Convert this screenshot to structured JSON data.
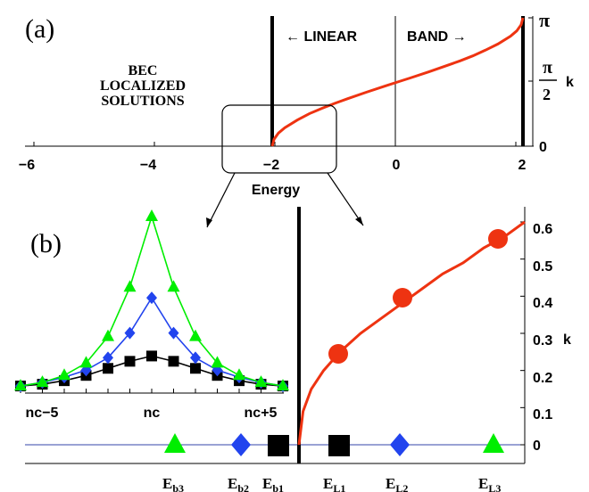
{
  "panel_a": {
    "label": "(a)",
    "x_ticks": [
      "−6",
      "−4",
      "−2",
      "0",
      "2"
    ],
    "x_label": "Energy",
    "right_ticks": {
      "pi": "π",
      "pi_half_num": "π",
      "pi_half_den": "2",
      "zero": "0"
    },
    "right_label": "k",
    "linear_label": "← LINEAR",
    "band_label": "BAND →",
    "bec_lines": [
      "BEC",
      "LOCALIZED",
      "SOLUTIONS"
    ]
  },
  "panel_b": {
    "label": "(b)",
    "y_ticks": [
      "0.6",
      "0.5",
      "0.4",
      "0.3",
      "0.2",
      "0.1",
      "0"
    ],
    "y_label": "k",
    "inset_ticks": [
      "nc−5",
      "nc",
      "nc+5"
    ],
    "bottom": {
      "b3": {
        "main": "E",
        "sub": "b3"
      },
      "b2": {
        "main": "E",
        "sub": "b2"
      },
      "b1": {
        "main": "E",
        "sub": "b1"
      },
      "L1": {
        "main": "E",
        "sub": "L1"
      },
      "L2": {
        "main": "E",
        "sub": "L2"
      },
      "L3": {
        "main": "E",
        "sub": "L3"
      }
    }
  },
  "chart_data": [
    {
      "type": "line",
      "panel": "(a)",
      "xlim": [
        -6.5,
        2.1
      ],
      "ylim": [
        0,
        3.1416
      ],
      "x_ticks": [
        -6,
        -4,
        -2,
        0,
        2
      ],
      "y_ticks": [
        "0",
        "π/2",
        "π"
      ],
      "series": [
        {
          "color": "#ee3311",
          "x": [
            -2,
            -1.97,
            -1.9,
            -1.8,
            -1.6,
            -1.4,
            -1.2,
            -1.0,
            -0.8,
            -0.5,
            -0.2,
            0,
            0.2,
            0.5,
            0.8,
            1.0,
            1.2,
            1.4,
            1.6,
            1.8,
            1.9,
            1.97,
            2
          ],
          "y": [
            0,
            0.17,
            0.32,
            0.45,
            0.64,
            0.8,
            0.93,
            1.05,
            1.16,
            1.32,
            1.47,
            1.5708,
            1.67,
            1.82,
            1.98,
            2.09,
            2.21,
            2.35,
            2.5,
            2.69,
            2.82,
            2.97,
            3.1416
          ]
        }
      ],
      "vertical_lines": [
        -2,
        0,
        2
      ]
    },
    {
      "type": "line",
      "panel": "(b)",
      "xlim": [
        -2.65,
        -1.43
      ],
      "ylim": [
        0,
        0.63
      ],
      "y_ticks": [
        0,
        0.1,
        0.2,
        0.3,
        0.4,
        0.5,
        0.6
      ],
      "series": [
        {
          "color": "#ee3311",
          "x": [
            -2,
            -1.99,
            -1.97,
            -1.94,
            -1.9,
            -1.85,
            -1.8,
            -1.75,
            -1.7,
            -1.65,
            -1.6,
            -1.55,
            -1.5,
            -1.45
          ],
          "y": [
            0,
            0.09,
            0.15,
            0.2,
            0.25,
            0.3,
            0.34,
            0.38,
            0.42,
            0.46,
            0.49,
            0.53,
            0.56,
            0.6
          ]
        }
      ],
      "markers": [
        {
          "name": "E_L1",
          "shape": "circle",
          "color": "#ee3311",
          "x": -1.9,
          "y": 0.245
        },
        {
          "name": "E_L2",
          "shape": "circle",
          "color": "#ee3311",
          "x": -1.72,
          "y": 0.4
        },
        {
          "name": "E_L3",
          "shape": "circle",
          "color": "#ee3311",
          "x": -1.52,
          "y": 0.56
        },
        {
          "name": "E_b3",
          "shape": "triangle",
          "color": "#00ee00",
          "x": -2.28,
          "y": 0
        },
        {
          "name": "E_b2",
          "shape": "diamond",
          "color": "#2244ee",
          "x": -2.1,
          "y": 0
        },
        {
          "name": "E_b1",
          "shape": "square",
          "color": "#000000",
          "x": -2.04,
          "y": 0
        },
        {
          "name": "E_L1_axis",
          "shape": "square",
          "color": "#000000",
          "x": -1.9,
          "y": 0
        },
        {
          "name": "E_L2_axis",
          "shape": "diamond",
          "color": "#2244ee",
          "x": -1.72,
          "y": 0
        },
        {
          "name": "E_L3_axis",
          "shape": "triangle",
          "color": "#00ee00",
          "x": -1.52,
          "y": 0
        }
      ]
    },
    {
      "type": "line",
      "panel": "(b) inset",
      "x_ticks": [
        "nc−5",
        "nc",
        "nc+5"
      ],
      "x": [
        -6,
        -5,
        -4,
        -3,
        -2,
        -1,
        0,
        1,
        2,
        3,
        4,
        5,
        6
      ],
      "series": [
        {
          "color": "#00ee00",
          "marker": "triangle",
          "values": [
            0.04,
            0.06,
            0.1,
            0.17,
            0.32,
            0.6,
            1.0,
            0.6,
            0.32,
            0.17,
            0.1,
            0.06,
            0.04
          ]
        },
        {
          "color": "#2244ee",
          "marker": "diamond",
          "values": [
            0.04,
            0.06,
            0.09,
            0.13,
            0.2,
            0.34,
            0.54,
            0.34,
            0.2,
            0.13,
            0.09,
            0.06,
            0.04
          ]
        },
        {
          "color": "#000000",
          "marker": "square",
          "values": [
            0.04,
            0.05,
            0.07,
            0.1,
            0.14,
            0.18,
            0.21,
            0.18,
            0.14,
            0.1,
            0.07,
            0.05,
            0.04
          ]
        }
      ]
    }
  ]
}
